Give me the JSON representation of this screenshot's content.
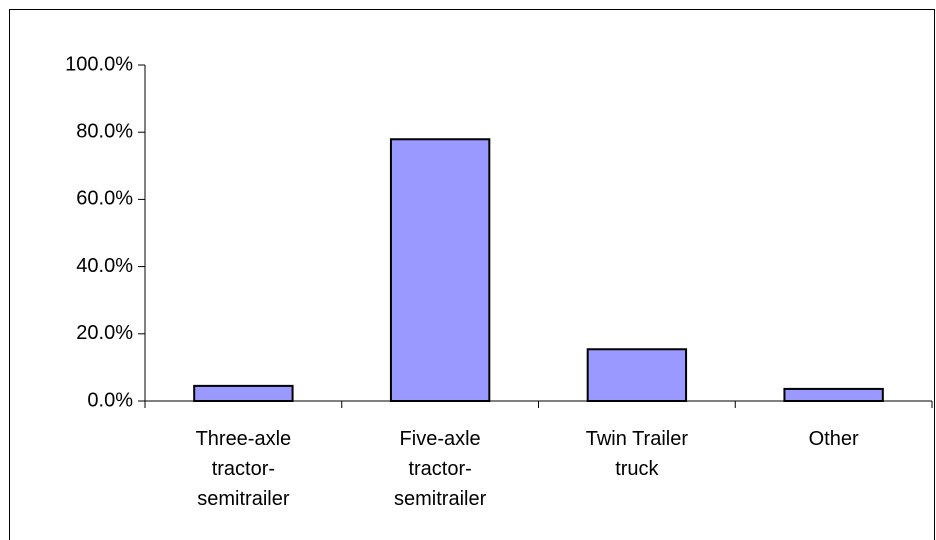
{
  "chart_data": {
    "type": "bar",
    "categories": [
      "Three-axle tractor-semitrailer",
      "Five-axle tractor-semitrailer",
      "Twin Trailer truck",
      "Other"
    ],
    "values": [
      4.5,
      77.9,
      15.4,
      3.6
    ],
    "color": "#9999ff",
    "ylim": [
      0,
      100
    ],
    "yticks": [
      {
        "value": 0,
        "label": "0.0%"
      },
      {
        "value": 20,
        "label": "20.0%"
      },
      {
        "value": 40,
        "label": "40.0%"
      },
      {
        "value": 60,
        "label": "60.0%"
      },
      {
        "value": 80,
        "label": "80.0%"
      },
      {
        "value": 100,
        "label": "100.0%"
      }
    ],
    "grid": false
  }
}
